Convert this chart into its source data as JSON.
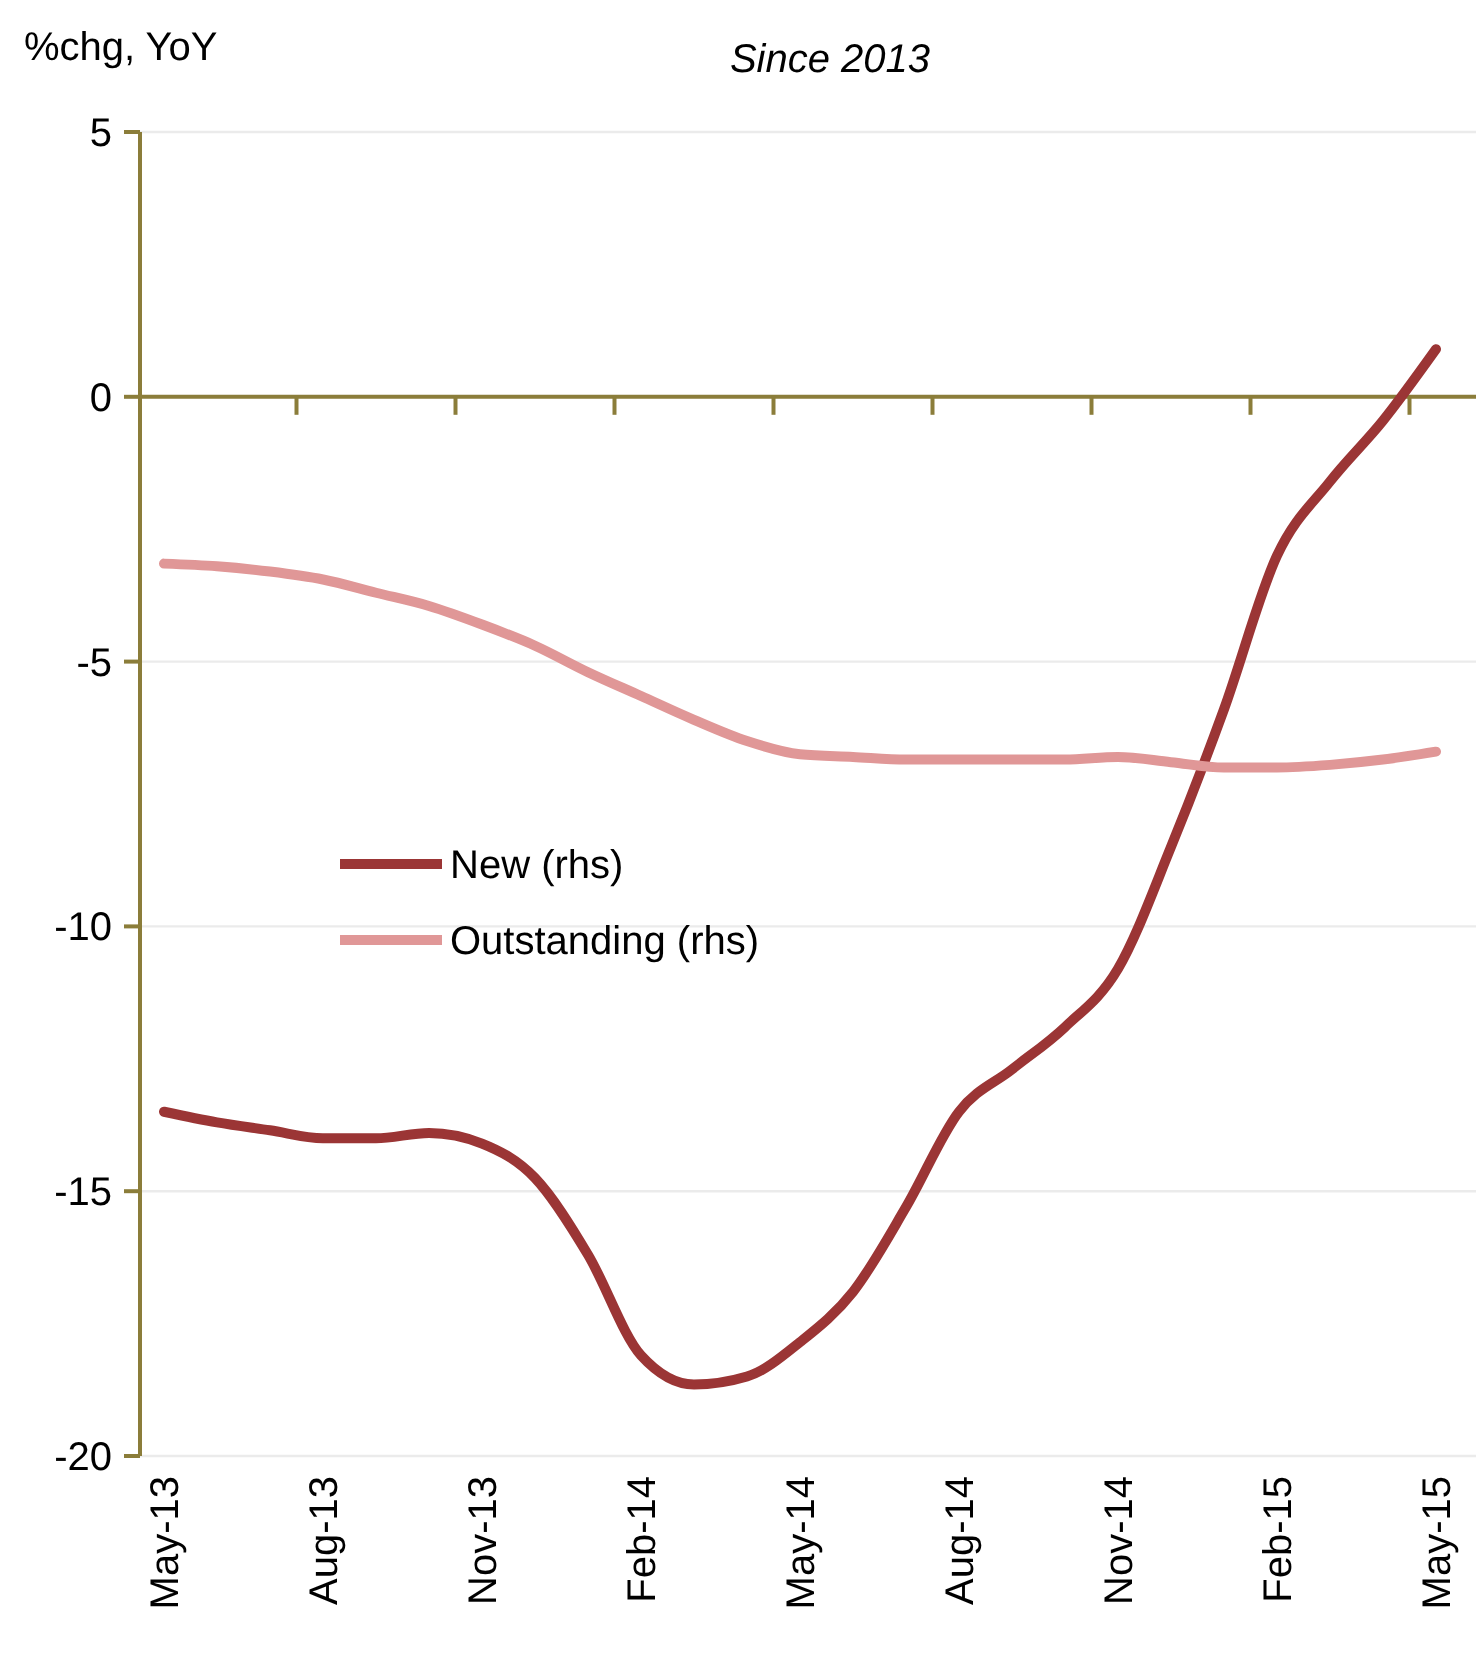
{
  "chart_data": {
    "type": "line",
    "title": "Since 2013",
    "ylabel": "%chg, YoY",
    "categories": [
      "May-13",
      null,
      null,
      "Aug-13",
      null,
      null,
      "Nov-13",
      null,
      null,
      "Feb-14",
      null,
      null,
      "May-14",
      null,
      null,
      "Aug-14",
      null,
      null,
      "Nov-14",
      null,
      null,
      "Feb-15",
      null,
      null,
      "May-15"
    ],
    "series": [
      {
        "name": "New (rhs)",
        "color": "#9b3535",
        "values": [
          -13.5,
          -13.7,
          -13.85,
          -14.0,
          -14.0,
          -13.9,
          -14.1,
          -14.75,
          -16.2,
          -18.1,
          -18.65,
          -18.5,
          -17.85,
          -16.9,
          -15.3,
          -13.5,
          -12.7,
          -11.9,
          -10.8,
          -8.5,
          -5.9,
          -3.0,
          -1.6,
          -0.45,
          0.9
        ]
      },
      {
        "name": "Outstanding (rhs)",
        "color": "#e09797",
        "values": [
          -3.15,
          -3.2,
          -3.3,
          -3.45,
          -3.7,
          -3.95,
          -4.3,
          -4.7,
          -5.2,
          -5.65,
          -6.1,
          -6.5,
          -6.75,
          -6.8,
          -6.85,
          -6.85,
          -6.85,
          -6.85,
          -6.8,
          -6.9,
          -7.0,
          -7.0,
          -6.95,
          -6.85,
          -6.7
        ]
      }
    ],
    "ylim": [
      -20,
      5
    ],
    "yticks": [
      -20,
      -15,
      -10,
      -5,
      0,
      5
    ],
    "ref_lines": [
      {
        "axis": "y",
        "value": 0,
        "color": "#8b7d3a"
      }
    ],
    "grid": "y",
    "legend": "center",
    "marker": "none",
    "line_style": "solid"
  }
}
